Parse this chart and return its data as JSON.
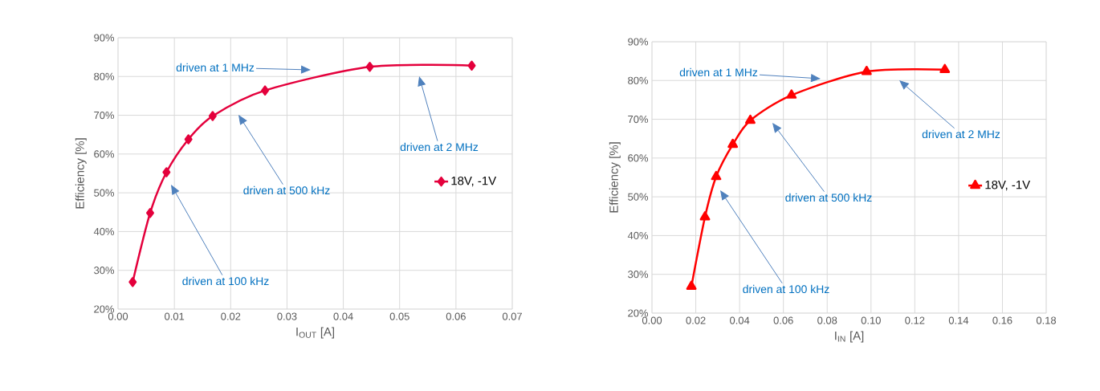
{
  "chart_data": [
    {
      "type": "line",
      "xlabel": "I$_{OUT}$ [A]",
      "ylabel": "Efficiency [%]",
      "x": [
        0.0026,
        0.0057,
        0.0086,
        0.0125,
        0.0168,
        0.0261,
        0.0447,
        0.0628
      ],
      "series": [
        {
          "name": "18V, -1V",
          "color": "#e4003c",
          "values": [
            27,
            44.8,
            55.3,
            63.8,
            69.8,
            76.4,
            82.5,
            82.8
          ]
        }
      ],
      "xlim": [
        0,
        0.07
      ],
      "xticks": [
        {
          "value": 0,
          "label": "0.00"
        },
        {
          "value": 0.01,
          "label": "0.01"
        },
        {
          "value": 0.02,
          "label": "0.02"
        },
        {
          "value": 0.03,
          "label": "0.03"
        },
        {
          "value": 0.04,
          "label": "0.04"
        },
        {
          "value": 0.05,
          "label": "0.05"
        },
        {
          "value": 0.06,
          "label": "0.06"
        },
        {
          "value": 0.07,
          "label": "0.07"
        }
      ],
      "ylim": [
        20,
        90
      ],
      "yticks": [
        {
          "value": 20,
          "label": "20%"
        },
        {
          "value": 30,
          "label": "30%"
        },
        {
          "value": 40,
          "label": "40%"
        },
        {
          "value": 50,
          "label": "50%"
        },
        {
          "value": 60,
          "label": "60%"
        },
        {
          "value": 70,
          "label": "70%"
        },
        {
          "value": 80,
          "label": "80%"
        },
        {
          "value": 90,
          "label": "90%"
        }
      ],
      "annotations": [
        "driven at 1 MHz",
        "driven at 2 MHz",
        "driven at 500 kHz",
        "driven at 100 kHz"
      ],
      "grid": true,
      "legend": "right",
      "marker": "diamond",
      "line_style": "solid"
    },
    {
      "type": "line",
      "xlabel": "I$_{IN}$ [A]",
      "ylabel": "Efficiency [%]",
      "x": [
        0.018,
        0.0242,
        0.0293,
        0.0369,
        0.0449,
        0.0637,
        0.098,
        0.1337
      ],
      "series": [
        {
          "name": "18V, -1V",
          "color": "#ff0000",
          "values": [
            26.9,
            44.8,
            55.2,
            63.5,
            69.7,
            76.2,
            82.3,
            82.8
          ]
        }
      ],
      "xlim": [
        0,
        0.18
      ],
      "xticks": [
        {
          "value": 0,
          "label": "0.00"
        },
        {
          "value": 0.02,
          "label": "0.02"
        },
        {
          "value": 0.04,
          "label": "0.04"
        },
        {
          "value": 0.06,
          "label": "0.06"
        },
        {
          "value": 0.08,
          "label": "0.08"
        },
        {
          "value": 0.1,
          "label": "0.10"
        },
        {
          "value": 0.12,
          "label": "0.12"
        },
        {
          "value": 0.14,
          "label": "0.14"
        },
        {
          "value": 0.16,
          "label": "0.16"
        },
        {
          "value": 0.18,
          "label": "0.18"
        }
      ],
      "ylim": [
        20,
        90
      ],
      "yticks": [
        {
          "value": 20,
          "label": "20%"
        },
        {
          "value": 30,
          "label": "30%"
        },
        {
          "value": 40,
          "label": "40%"
        },
        {
          "value": 50,
          "label": "50%"
        },
        {
          "value": 60,
          "label": "60%"
        },
        {
          "value": 70,
          "label": "70%"
        },
        {
          "value": 80,
          "label": "80%"
        },
        {
          "value": 90,
          "label": "90%"
        }
      ],
      "annotations": [
        "driven at 1 MHz",
        "driven at 2 MHz",
        "driven at 500 kHz",
        "driven at 100 kHz"
      ],
      "grid": true,
      "legend": "right",
      "marker": "triangle",
      "line_style": "solid"
    }
  ]
}
